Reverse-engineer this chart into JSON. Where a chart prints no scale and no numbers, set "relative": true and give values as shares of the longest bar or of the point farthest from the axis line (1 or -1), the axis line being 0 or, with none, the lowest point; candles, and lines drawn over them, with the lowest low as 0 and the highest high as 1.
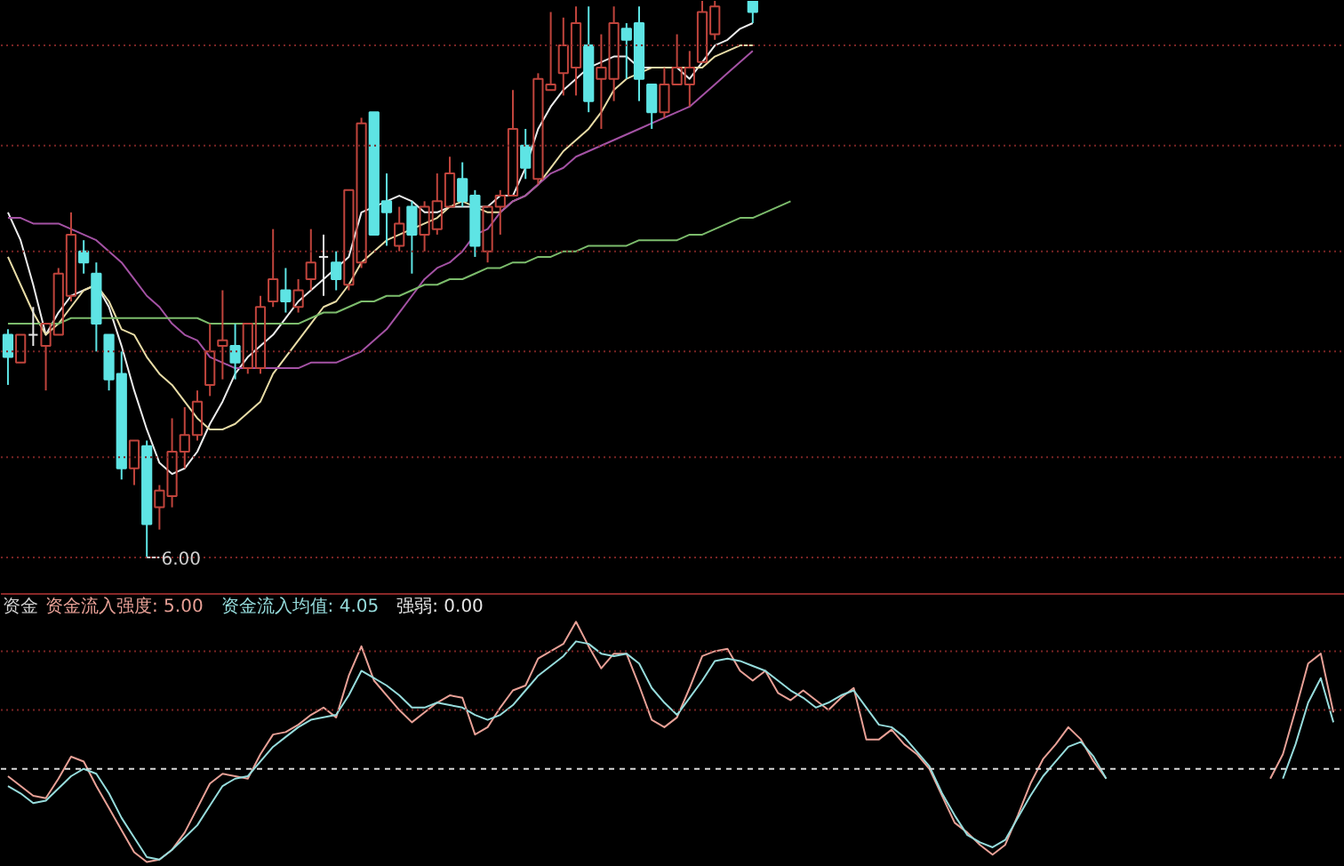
{
  "chart_data": [
    {
      "type": "candlestick",
      "relative": true,
      "categories": [
        null,
        null,
        null,
        null,
        null,
        null,
        null,
        null,
        null,
        null,
        null,
        null,
        null,
        null,
        null,
        null,
        null,
        null,
        null,
        null,
        null,
        null,
        null,
        null,
        null,
        null,
        null,
        null,
        null,
        null,
        null,
        null,
        null,
        null,
        null,
        null,
        null,
        null,
        null,
        null,
        null,
        null,
        null,
        null,
        null,
        null,
        null,
        null,
        null,
        null,
        null,
        null,
        null,
        null,
        null,
        null,
        null,
        null,
        null,
        null,
        null,
        null,
        null,
        null,
        null,
        null,
        null,
        null,
        null,
        null,
        null,
        null,
        null,
        null,
        null,
        null,
        null,
        null,
        null,
        null,
        null,
        null,
        null,
        null,
        null,
        null,
        null,
        null,
        null,
        null,
        null,
        null,
        null,
        null,
        null,
        null,
        null,
        null,
        null,
        null,
        null,
        null,
        null,
        null,
        null,
        null
      ],
      "ohlc": [
        [
          0.4,
          0.41,
          0.31,
          0.36
        ],
        [
          0.35,
          0.4,
          0.35,
          0.4
        ],
        [
          0.4,
          0.45,
          0.38,
          0.4
        ],
        [
          0.38,
          0.42,
          0.3,
          0.42
        ],
        [
          0.4,
          0.52,
          0.4,
          0.51
        ],
        [
          0.47,
          0.62,
          0.46,
          0.58
        ],
        [
          0.55,
          0.57,
          0.51,
          0.53
        ],
        [
          0.51,
          0.53,
          0.37,
          0.42
        ],
        [
          0.4,
          0.4,
          0.3,
          0.32
        ],
        [
          0.33,
          0.37,
          0.14,
          0.16
        ],
        [
          0.16,
          0.21,
          0.13,
          0.21
        ],
        [
          0.2,
          0.21,
          0.0,
          0.06
        ],
        [
          0.09,
          0.13,
          0.05,
          0.12
        ],
        [
          0.11,
          0.25,
          0.09,
          0.19
        ],
        [
          0.19,
          0.27,
          0.16,
          0.22
        ],
        [
          0.22,
          0.3,
          0.21,
          0.28
        ],
        [
          0.31,
          0.42,
          0.29,
          0.37
        ],
        [
          0.38,
          0.48,
          0.32,
          0.39
        ],
        [
          0.38,
          0.42,
          0.32,
          0.35
        ],
        [
          0.34,
          0.42,
          0.33,
          0.42
        ],
        [
          0.34,
          0.47,
          0.33,
          0.45
        ],
        [
          0.46,
          0.59,
          0.45,
          0.5
        ],
        [
          0.48,
          0.52,
          0.44,
          0.46
        ],
        [
          0.45,
          0.5,
          0.44,
          0.48
        ],
        [
          0.5,
          0.59,
          0.48,
          0.53
        ],
        [
          0.54,
          0.58,
          0.47,
          0.54
        ],
        [
          0.53,
          0.55,
          0.48,
          0.5
        ],
        [
          0.49,
          0.66,
          0.48,
          0.66
        ],
        [
          0.53,
          0.79,
          0.52,
          0.78
        ],
        [
          0.8,
          0.8,
          0.58,
          0.58
        ],
        [
          0.64,
          0.69,
          0.56,
          0.62
        ],
        [
          0.56,
          0.63,
          0.55,
          0.6
        ],
        [
          0.63,
          0.64,
          0.51,
          0.58
        ],
        [
          0.58,
          0.64,
          0.55,
          0.63
        ],
        [
          0.59,
          0.69,
          0.58,
          0.64
        ],
        [
          0.63,
          0.72,
          0.63,
          0.69
        ],
        [
          0.68,
          0.71,
          0.63,
          0.64
        ],
        [
          0.65,
          0.66,
          0.54,
          0.56
        ],
        [
          0.55,
          0.63,
          0.53,
          0.63
        ],
        [
          0.63,
          0.66,
          0.58,
          0.65
        ],
        [
          0.65,
          0.84,
          0.65,
          0.77
        ],
        [
          0.74,
          0.77,
          0.68,
          0.7
        ],
        [
          0.68,
          0.87,
          0.67,
          0.86
        ],
        [
          0.84,
          0.98,
          0.84,
          0.85
        ],
        [
          0.87,
          0.97,
          0.83,
          0.92
        ],
        [
          0.88,
          0.99,
          0.83,
          0.96
        ],
        [
          0.92,
          0.99,
          0.8,
          0.82
        ],
        [
          0.86,
          0.94,
          0.77,
          0.88
        ],
        [
          0.86,
          0.99,
          0.82,
          0.96
        ],
        [
          0.95,
          0.96,
          0.86,
          0.93
        ],
        [
          0.96,
          0.99,
          0.82,
          0.86
        ],
        [
          0.85,
          0.85,
          0.77,
          0.8
        ],
        [
          0.8,
          0.88,
          0.79,
          0.85
        ],
        [
          0.85,
          0.94,
          0.85,
          0.88
        ],
        [
          0.85,
          0.91,
          0.81,
          0.88
        ],
        [
          0.89,
          1.0,
          0.89,
          0.98
        ],
        [
          0.94,
          1.0,
          0.93,
          0.99
        ],
        null,
        null,
        [
          1.0,
          1.0,
          0.96,
          0.98
        ],
        null,
        null,
        null,
        null,
        null,
        null,
        null,
        null,
        null,
        null,
        null,
        null,
        null,
        null,
        null,
        null,
        null,
        null,
        null,
        null,
        null,
        null,
        null,
        null,
        null,
        null,
        null,
        null,
        null,
        null,
        null,
        null,
        null,
        null,
        null,
        null,
        null,
        null,
        null,
        null,
        null,
        null,
        null,
        null,
        null,
        null
      ],
      "colors": [
        "#5ee4e4",
        "#c0443c",
        "#e6e6e6",
        "#c0443c",
        "#c0443c",
        "#c0443c",
        "#5ee4e4",
        "#5ee4e4",
        "#5ee4e4",
        "#5ee4e4",
        "#c0443c",
        "#5ee4e4",
        "#c0443c",
        "#c0443c",
        "#c0443c",
        "#c0443c",
        "#c0443c",
        "#c0443c",
        "#5ee4e4",
        "#c0443c",
        "#c0443c",
        "#c0443c",
        "#5ee4e4",
        "#c0443c",
        "#c0443c",
        "#e6e6e6",
        "#5ee4e4",
        "#c0443c",
        "#c0443c",
        "#5ee4e4",
        "#5ee4e4",
        "#c0443c",
        "#5ee4e4",
        "#c0443c",
        "#c0443c",
        "#c0443c",
        "#5ee4e4",
        "#5ee4e4",
        "#c0443c",
        "#c0443c",
        "#c0443c",
        "#5ee4e4",
        "#c0443c",
        "#c0443c",
        "#c0443c",
        "#c0443c",
        "#5ee4e4",
        "#c0443c",
        "#c0443c",
        "#5ee4e4",
        "#5ee4e4",
        "#5ee4e4",
        "#c0443c",
        "#c0443c",
        "#c0443c",
        "#c0443c",
        "#c0443c",
        null,
        null,
        "#5ee4e4",
        null,
        null,
        null,
        null,
        null,
        null,
        null,
        null,
        null,
        null,
        null,
        null,
        null,
        null,
        null,
        null,
        null,
        null,
        null,
        null,
        null,
        null,
        null,
        null,
        null,
        null,
        null,
        null,
        null,
        null,
        null,
        null,
        null,
        null,
        null,
        null,
        null,
        null,
        null,
        null,
        null,
        null,
        null,
        null,
        null,
        null
      ],
      "series": [
        {
          "type": "line",
          "color": "#ececec",
          "values": [
            0.62,
            0.57,
            0.49,
            0.4,
            0.44,
            0.47,
            0.48,
            0.49,
            0.45,
            0.38,
            0.3,
            0.23,
            0.17,
            0.15,
            0.16,
            0.19,
            0.24,
            0.28,
            0.33,
            0.36,
            0.38,
            0.4,
            0.43,
            0.46,
            0.48,
            0.5,
            0.52,
            0.54,
            0.62,
            0.63,
            0.64,
            0.65,
            0.64,
            0.62,
            0.62,
            0.63,
            0.63,
            0.63,
            0.63,
            0.65,
            0.65,
            0.7,
            0.77,
            0.81,
            0.84,
            0.86,
            0.88,
            0.89,
            0.9,
            0.9,
            0.88,
            0.88,
            0.88,
            0.88,
            0.86,
            0.89,
            0.92,
            0.93,
            0.95,
            0.96,
            null,
            null,
            null,
            null,
            null,
            null,
            null,
            null,
            null,
            null,
            null,
            null,
            null,
            null,
            null,
            null,
            null,
            null,
            null,
            null,
            null,
            null,
            null,
            null,
            null,
            null,
            null,
            null,
            null,
            null,
            null,
            null,
            null,
            null,
            null,
            null,
            null,
            null,
            null,
            null,
            null,
            null,
            null,
            null,
            null,
            null
          ]
        },
        {
          "type": "line",
          "color": "#e8dca6",
          "values": [
            0.54,
            0.49,
            0.44,
            0.4,
            0.42,
            0.45,
            0.48,
            0.49,
            0.46,
            0.41,
            0.4,
            0.36,
            0.33,
            0.31,
            0.28,
            0.25,
            0.23,
            0.23,
            0.24,
            0.26,
            0.28,
            0.33,
            0.36,
            0.39,
            0.42,
            0.45,
            0.46,
            0.49,
            0.53,
            0.55,
            0.57,
            0.58,
            0.59,
            0.6,
            0.61,
            0.63,
            0.64,
            0.63,
            0.62,
            0.62,
            0.64,
            0.65,
            0.67,
            0.7,
            0.73,
            0.75,
            0.77,
            0.8,
            0.84,
            0.86,
            0.87,
            0.88,
            0.88,
            0.88,
            0.88,
            0.88,
            0.9,
            0.91,
            0.92,
            0.92,
            null,
            null,
            null,
            null,
            null,
            null,
            null,
            null,
            null,
            null,
            null,
            null,
            null,
            null,
            null,
            null,
            null,
            null,
            null,
            null,
            null,
            null,
            null,
            null,
            null,
            null,
            null,
            null,
            null,
            null,
            null,
            null,
            null,
            null,
            null,
            null,
            null,
            null,
            null,
            null,
            null,
            null,
            null,
            null,
            null,
            null
          ]
        },
        {
          "type": "line",
          "color": "#a452a4",
          "values": [
            0.61,
            0.61,
            0.6,
            0.6,
            0.6,
            0.59,
            0.58,
            0.57,
            0.55,
            0.53,
            0.5,
            0.47,
            0.45,
            0.42,
            0.4,
            0.39,
            0.36,
            0.35,
            0.34,
            0.34,
            0.34,
            0.34,
            0.34,
            0.34,
            0.35,
            0.35,
            0.35,
            0.36,
            0.37,
            0.39,
            0.41,
            0.44,
            0.47,
            0.5,
            0.52,
            0.53,
            0.55,
            0.58,
            0.59,
            0.62,
            0.64,
            0.65,
            0.67,
            0.69,
            0.7,
            0.72,
            0.73,
            0.74,
            0.75,
            0.76,
            0.77,
            0.78,
            0.79,
            0.8,
            0.81,
            0.83,
            0.85,
            0.87,
            0.89,
            0.91,
            null,
            null,
            null,
            null,
            null,
            null,
            null,
            null,
            null,
            null,
            null,
            null,
            null,
            null,
            null,
            null,
            null,
            null,
            null,
            null,
            null,
            null,
            null,
            null,
            null,
            null,
            null,
            null,
            null,
            null,
            null,
            null,
            null,
            null,
            null,
            null,
            null,
            null,
            null,
            null,
            null,
            null,
            null,
            null,
            null,
            null
          ]
        },
        {
          "type": "line",
          "color": "#7cbc6c",
          "values": [
            0.42,
            0.42,
            0.42,
            0.42,
            0.42,
            0.43,
            0.43,
            0.43,
            0.43,
            0.43,
            0.43,
            0.43,
            0.43,
            0.43,
            0.43,
            0.43,
            0.42,
            0.42,
            0.42,
            0.42,
            0.42,
            0.42,
            0.42,
            0.42,
            0.43,
            0.44,
            0.44,
            0.45,
            0.46,
            0.46,
            0.47,
            0.47,
            0.48,
            0.49,
            0.49,
            0.5,
            0.5,
            0.51,
            0.52,
            0.52,
            0.53,
            0.53,
            0.54,
            0.54,
            0.55,
            0.55,
            0.56,
            0.56,
            0.56,
            0.56,
            0.57,
            0.57,
            0.57,
            0.57,
            0.58,
            0.58,
            0.59,
            0.6,
            0.61,
            0.61,
            0.62,
            0.63,
            0.64,
            null,
            null,
            null,
            null,
            null,
            null,
            null,
            null,
            null,
            null,
            null,
            null,
            null,
            null,
            null,
            null,
            null,
            null,
            null,
            null,
            null,
            null,
            null,
            null,
            null,
            null,
            null,
            null,
            null,
            null,
            null,
            null,
            null,
            null,
            null,
            null,
            null,
            null,
            null,
            null,
            null,
            null,
            null
          ]
        }
      ],
      "ref_lines": [
        {
          "axis": "y",
          "value": 0.92,
          "color": "#7a2424",
          "line_style": "dotted"
        },
        {
          "axis": "y",
          "value": 0.74,
          "color": "#7a2424",
          "line_style": "dotted"
        },
        {
          "axis": "y",
          "value": 0.55,
          "color": "#7a2424",
          "line_style": "dotted"
        },
        {
          "axis": "y",
          "value": 0.37,
          "color": "#7a2424",
          "line_style": "dotted"
        },
        {
          "axis": "y",
          "value": 0.18,
          "color": "#7a2424",
          "line_style": "dotted"
        },
        {
          "axis": "y",
          "value": 0.0,
          "color": "#7a2424",
          "line_style": "dotted"
        }
      ],
      "annotations": [
        {
          "text": "6.00",
          "y": 0.0
        }
      ]
    },
    {
      "type": "line",
      "title": "资金",
      "relative": true,
      "legend": "top left",
      "categories": [
        null,
        null,
        null,
        null,
        null,
        null,
        null,
        null,
        null,
        null,
        null,
        null,
        null,
        null,
        null,
        null,
        null,
        null,
        null,
        null,
        null,
        null,
        null,
        null,
        null,
        null,
        null,
        null,
        null,
        null,
        null,
        null,
        null,
        null,
        null,
        null,
        null,
        null,
        null,
        null,
        null,
        null,
        null,
        null,
        null,
        null,
        null,
        null,
        null,
        null,
        null,
        null,
        null,
        null,
        null,
        null,
        null,
        null,
        null,
        null,
        null,
        null,
        null,
        null,
        null,
        null,
        null,
        null,
        null,
        null,
        null,
        null,
        null,
        null,
        null,
        null,
        null,
        null,
        null,
        null,
        null,
        null,
        null,
        null,
        null,
        null,
        null,
        null,
        null,
        null,
        null,
        null,
        null,
        null,
        null,
        null,
        null,
        null,
        null,
        null,
        null,
        null,
        null,
        null,
        null,
        null
      ],
      "series": [
        {
          "name": "资金流入强度: 5.00",
          "color": "#e8a096",
          "values": [
            0.37,
            0.33,
            0.29,
            0.28,
            0.36,
            0.45,
            0.43,
            0.33,
            0.24,
            0.15,
            0.06,
            0.02,
            0.03,
            0.07,
            0.14,
            0.24,
            0.34,
            0.38,
            0.37,
            0.36,
            0.46,
            0.54,
            0.55,
            0.58,
            0.62,
            0.65,
            0.61,
            0.78,
            0.9,
            0.76,
            0.7,
            0.64,
            0.59,
            0.63,
            0.67,
            0.7,
            0.69,
            0.54,
            0.57,
            0.65,
            0.72,
            0.74,
            0.85,
            0.88,
            0.91,
            1.0,
            0.9,
            0.81,
            0.87,
            0.87,
            0.74,
            0.6,
            0.57,
            0.61,
            0.73,
            0.86,
            0.88,
            0.89,
            0.8,
            0.76,
            0.8,
            0.71,
            0.68,
            0.72,
            0.68,
            0.64,
            0.69,
            0.73,
            0.52,
            0.52,
            0.56,
            0.5,
            0.46,
            0.4,
            0.29,
            0.18,
            0.14,
            0.09,
            0.05,
            0.09,
            0.21,
            0.34,
            0.44,
            0.5,
            0.57,
            0.52,
            0.43,
            0.36,
            null,
            null,
            null,
            null,
            null,
            null,
            null,
            null,
            null,
            null,
            null,
            null,
            0.36,
            0.46,
            0.64,
            0.83,
            0.87,
            0.63
          ]
        },
        {
          "name": "资金流入均值: 4.05",
          "color": "#96dcdc",
          "values": [
            0.33,
            0.3,
            0.26,
            0.27,
            0.32,
            0.37,
            0.4,
            0.38,
            0.3,
            0.2,
            0.12,
            0.04,
            0.03,
            0.07,
            0.12,
            0.17,
            0.25,
            0.33,
            0.36,
            0.37,
            0.43,
            0.49,
            0.53,
            0.57,
            0.6,
            0.61,
            0.62,
            0.7,
            0.8,
            0.77,
            0.74,
            0.7,
            0.65,
            0.65,
            0.67,
            0.66,
            0.65,
            0.62,
            0.6,
            0.62,
            0.66,
            0.72,
            0.78,
            0.82,
            0.86,
            0.92,
            0.91,
            0.87,
            0.86,
            0.87,
            0.83,
            0.73,
            0.67,
            0.62,
            0.69,
            0.76,
            0.84,
            0.85,
            0.84,
            0.82,
            0.8,
            0.76,
            0.72,
            0.69,
            0.65,
            0.67,
            0.7,
            0.72,
            0.65,
            0.58,
            0.57,
            0.53,
            0.47,
            0.41,
            0.3,
            0.21,
            0.13,
            0.1,
            0.08,
            0.11,
            0.2,
            0.29,
            0.37,
            0.43,
            0.49,
            0.51,
            0.45,
            0.36,
            null,
            null,
            null,
            null,
            null,
            null,
            null,
            null,
            null,
            null,
            null,
            null,
            null,
            0.36,
            0.5,
            0.67,
            0.77,
            0.59
          ]
        }
      ],
      "ref_lines": [
        {
          "axis": "y",
          "value": 0.88,
          "color": "#7a2424",
          "line_style": "dotted"
        },
        {
          "axis": "y",
          "value": 0.64,
          "color": "#7a2424",
          "line_style": "dotted"
        },
        {
          "axis": "y",
          "value": 0.4,
          "color": "#d8d8d8",
          "line_style": "dashed"
        }
      ],
      "annotations": [
        "强弱: 0.00"
      ]
    }
  ]
}
